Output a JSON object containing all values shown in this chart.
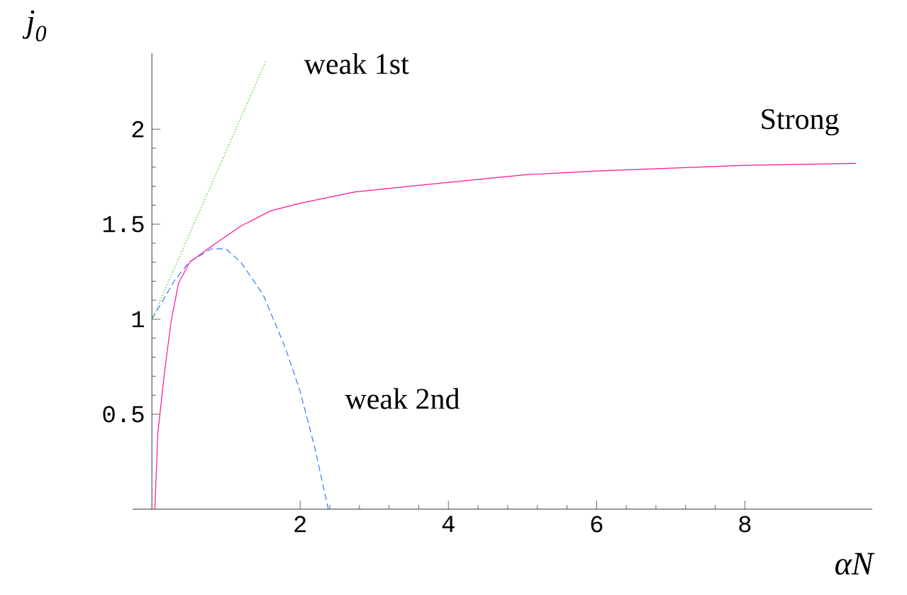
{
  "chart_data": {
    "type": "line",
    "xlabel": "αN",
    "ylabel": "j$_{0}$",
    "xlim": [
      -0.26,
      9.72
    ],
    "ylim": [
      0,
      2.4
    ],
    "xticks": [
      2,
      4,
      6,
      8
    ],
    "yticks": [
      0.5,
      1,
      1.5,
      2
    ],
    "grid": false,
    "legend": false,
    "marker": "none",
    "series": [
      {
        "name": "Strong",
        "color": "#ff1493",
        "line_style": "solid",
        "x": [
          0.04,
          0.08,
          0.17,
          0.26,
          0.36,
          0.51,
          0.79,
          1.2,
          1.6,
          2,
          2.74,
          4,
          5.04,
          6,
          8,
          9.5
        ],
        "values": [
          0,
          0.4,
          0.72,
          0.99,
          1.19,
          1.3,
          1.38,
          1.49,
          1.57,
          1.61,
          1.67,
          1.72,
          1.76,
          1.78,
          1.81,
          1.82
        ]
      },
      {
        "name": "weak 1st",
        "color": "#33cc00",
        "line_style": "dotted",
        "x": [
          0,
          1.54
        ],
        "values": [
          1,
          2.36
        ]
      },
      {
        "name": "weak 2nd",
        "color": "#3377ff",
        "line_style": "dashed",
        "x": [
          0,
          0.3,
          0.5,
          0.8,
          1.0,
          1.2,
          1.5,
          1.8,
          2.0,
          2.2,
          2.38
        ],
        "values": [
          1,
          1.2,
          1.3,
          1.37,
          1.37,
          1.3,
          1.13,
          0.85,
          0.62,
          0.32,
          0
        ]
      }
    ]
  }
}
